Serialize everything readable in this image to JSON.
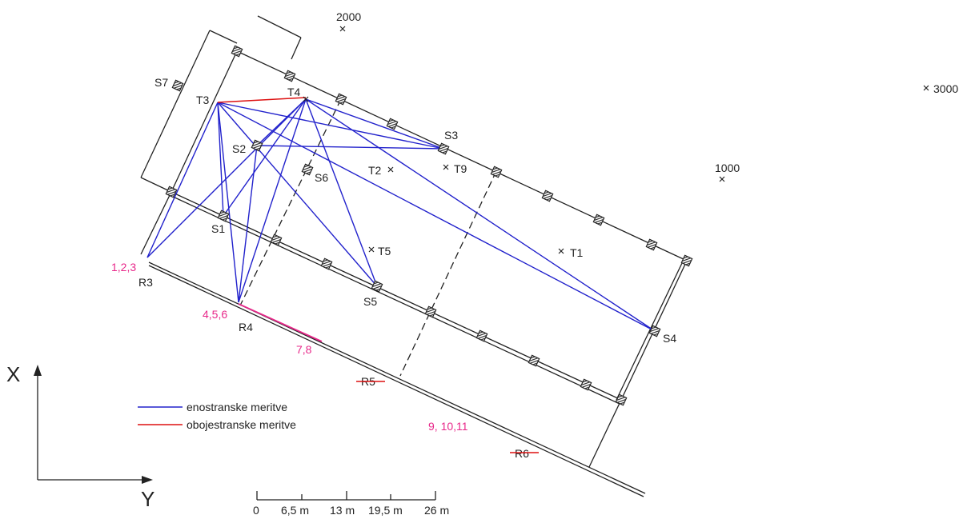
{
  "colors": {
    "one_sided": "#2222cc",
    "two_sided": "#dd1111",
    "point_label": "#e8288a",
    "structure": "#222222"
  },
  "points": {
    "S1": "S1",
    "S2": "S2",
    "S3": "S3",
    "S4": "S4",
    "S5": "S5",
    "S6": "S6",
    "S7": "S7",
    "T1": "T1",
    "T2": "T2",
    "T3": "T3",
    "T4": "T4",
    "T5": "T5",
    "T9": "T9",
    "R3": "R3",
    "R4": "R4",
    "R5": "R5",
    "R6": "R6"
  },
  "reference_points": [
    "2000",
    "3000",
    "1000"
  ],
  "measurement_groups": [
    "1,2,3",
    "4,5,6",
    "7,8",
    "9, 10,11"
  ],
  "axes": {
    "x": "X",
    "y": "Y"
  },
  "legend": [
    {
      "label": "enostranske meritve",
      "color": "#2222cc"
    },
    {
      "label": "obojestranske meritve",
      "color": "#dd1111"
    }
  ],
  "scale_bar": {
    "ticks": [
      "0",
      "6,5 m",
      "13 m",
      "19,5 m",
      "26 m"
    ]
  },
  "icons": {
    "marker": "survey-marker-icon",
    "cross": "cross-point-icon"
  }
}
